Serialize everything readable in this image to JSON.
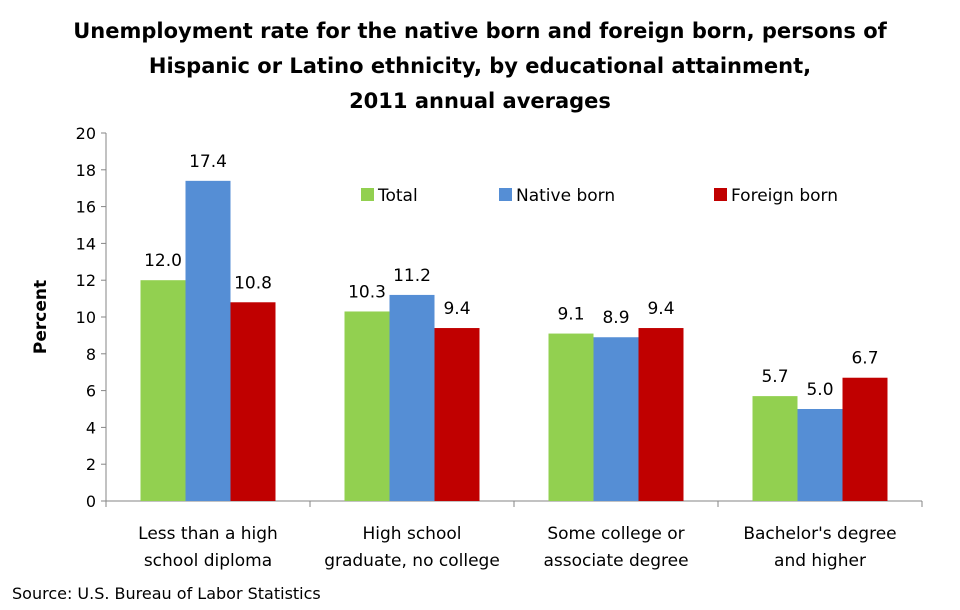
{
  "chart_data": {
    "type": "bar",
    "title_lines": [
      "Unemployment rate for the native born and foreign born, persons of",
      "Hispanic or Latino ethnicity, by educational attainment,",
      "2011 annual averages"
    ],
    "categories": [
      [
        "Less than a high",
        "school diploma"
      ],
      [
        "High school",
        "graduate, no college"
      ],
      [
        "Some college or",
        "associate degree"
      ],
      [
        "Bachelor's degree",
        "and higher"
      ]
    ],
    "series": [
      {
        "name": "Total",
        "color": "#92D050",
        "values": [
          12.0,
          10.3,
          9.1,
          5.7
        ],
        "labels": [
          "12.0",
          "10.3",
          "9.1",
          "5.7"
        ]
      },
      {
        "name": "Native born",
        "color": "#558ED5",
        "values": [
          17.4,
          11.2,
          8.9,
          5.0
        ],
        "labels": [
          "17.4",
          "11.2",
          "8.9",
          "5.0"
        ]
      },
      {
        "name": "Foreign born",
        "color": "#C00000",
        "values": [
          10.8,
          9.4,
          9.4,
          6.7
        ],
        "labels": [
          "10.8",
          "9.4",
          "9.4",
          "6.7"
        ]
      }
    ],
    "ylabel": "Percent",
    "xlabel": "",
    "ylim": [
      0,
      20
    ],
    "yticks": [
      0,
      2,
      4,
      6,
      8,
      10,
      12,
      14,
      16,
      18,
      20
    ],
    "grid": false,
    "legend_position": "top-center",
    "source": "Source: U.S. Bureau of Labor Statistics"
  }
}
